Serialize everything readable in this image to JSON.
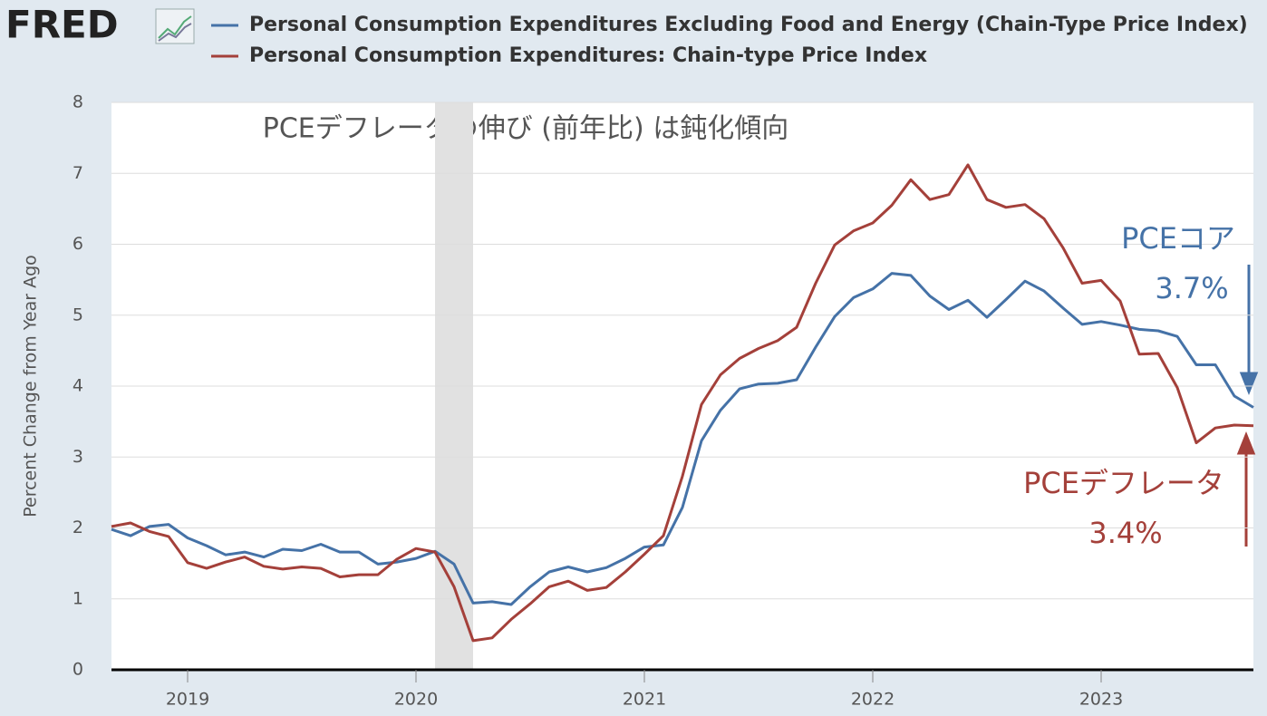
{
  "chart_data": {
    "type": "line",
    "logo": "FRED",
    "title": "PCEデフレータの伸び (前年比) は鈍化傾向",
    "y_label": "Percent Change from Year Ago",
    "x": [
      "2018-09",
      "2018-10",
      "2018-11",
      "2018-12",
      "2019-01",
      "2019-02",
      "2019-03",
      "2019-04",
      "2019-05",
      "2019-06",
      "2019-07",
      "2019-08",
      "2019-09",
      "2019-10",
      "2019-11",
      "2019-12",
      "2020-01",
      "2020-02",
      "2020-03",
      "2020-04",
      "2020-05",
      "2020-06",
      "2020-07",
      "2020-08",
      "2020-09",
      "2020-10",
      "2020-11",
      "2020-12",
      "2021-01",
      "2021-02",
      "2021-03",
      "2021-04",
      "2021-05",
      "2021-06",
      "2021-07",
      "2021-08",
      "2021-09",
      "2021-10",
      "2021-11",
      "2021-12",
      "2022-01",
      "2022-02",
      "2022-03",
      "2022-04",
      "2022-05",
      "2022-06",
      "2022-07",
      "2022-08",
      "2022-09",
      "2022-10",
      "2022-11",
      "2022-12",
      "2023-01",
      "2023-02",
      "2023-03",
      "2023-04",
      "2023-05",
      "2023-06",
      "2023-07",
      "2023-08",
      "2023-09"
    ],
    "series": [
      {
        "name": "Personal Consumption Expenditures Excluding Food and Energy (Chain-Type Price Index)",
        "color": "#4572a7",
        "values": [
          1.98,
          1.89,
          2.02,
          2.05,
          1.86,
          1.75,
          1.62,
          1.66,
          1.59,
          1.7,
          1.68,
          1.77,
          1.66,
          1.66,
          1.49,
          1.52,
          1.57,
          1.67,
          1.49,
          0.94,
          0.96,
          0.92,
          1.17,
          1.38,
          1.45,
          1.38,
          1.44,
          1.57,
          1.73,
          1.76,
          2.29,
          3.23,
          3.66,
          3.96,
          4.03,
          4.04,
          4.09,
          4.55,
          4.98,
          5.25,
          5.37,
          5.59,
          5.56,
          5.27,
          5.08,
          5.21,
          4.97,
          5.22,
          5.48,
          5.34,
          5.1,
          4.87,
          4.91,
          4.86,
          4.8,
          4.78,
          4.7,
          4.3,
          4.3,
          3.86,
          3.7
        ]
      },
      {
        "name": "Personal Consumption Expenditures: Chain-type Price Index",
        "color": "#a4403a",
        "values": [
          2.02,
          2.07,
          1.95,
          1.88,
          1.51,
          1.43,
          1.52,
          1.59,
          1.46,
          1.42,
          1.45,
          1.43,
          1.31,
          1.34,
          1.34,
          1.56,
          1.71,
          1.66,
          1.17,
          0.41,
          0.45,
          0.71,
          0.93,
          1.17,
          1.25,
          1.12,
          1.16,
          1.38,
          1.63,
          1.89,
          2.73,
          3.74,
          4.16,
          4.39,
          4.53,
          4.64,
          4.83,
          5.45,
          5.99,
          6.19,
          6.3,
          6.55,
          6.91,
          6.63,
          6.7,
          7.12,
          6.63,
          6.52,
          6.56,
          6.36,
          5.95,
          5.45,
          5.49,
          5.2,
          4.45,
          4.46,
          3.98,
          3.2,
          3.41,
          3.45,
          3.44
        ]
      }
    ],
    "xlim": [
      "2018-09",
      "2023-09"
    ],
    "xticks": [
      {
        "value": "2019-01",
        "label": "2019"
      },
      {
        "value": "2020-01",
        "label": "2020"
      },
      {
        "value": "2021-01",
        "label": "2021"
      },
      {
        "value": "2022-01",
        "label": "2022"
      },
      {
        "value": "2023-01",
        "label": "2023"
      }
    ],
    "ylim": [
      0,
      8
    ],
    "yticks": [
      0,
      1,
      2,
      3,
      4,
      5,
      6,
      7,
      8
    ],
    "grid": true,
    "shaded": [
      {
        "from": "2020-02",
        "to": "2020-04"
      }
    ],
    "annotations": [
      {
        "lines": [
          "PCEコア",
          "3.7%"
        ],
        "color": "#4572a7"
      },
      {
        "lines": [
          "PCEデフレータ",
          "3.4%"
        ],
        "color": "#a4403a"
      }
    ]
  }
}
